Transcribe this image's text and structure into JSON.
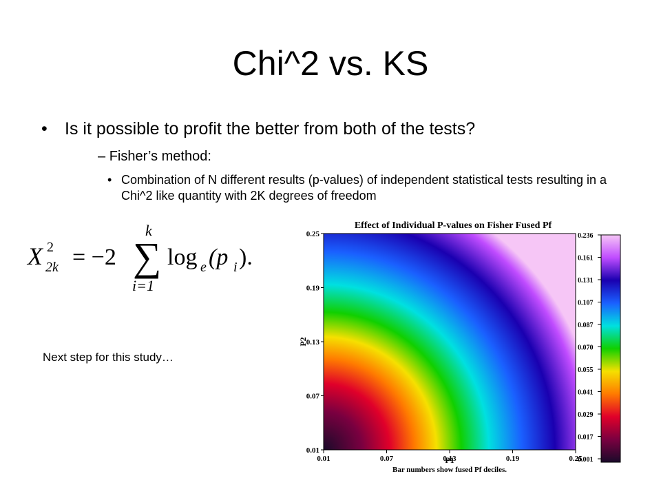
{
  "slide": {
    "title": "Chi^2 vs. KS",
    "bullet1": "Is it possible to profit the better from both of the tests?",
    "bullet2": "Fisher’s method:",
    "bullet3": "Combination of N different results (p-values) of independent statistical tests resulting in a Chi^2 like quantity with 2K degrees of freedom",
    "dash": "–",
    "dot": "•",
    "note": "Next step for this study…"
  },
  "formula": {
    "lhs": "X",
    "sup": "2",
    "sub": "2k",
    "equals": "= −2",
    "sum_symbol": "∑",
    "upper": "k",
    "lower": "i=1",
    "log": "log",
    "log_base": "e",
    "arg": "(p",
    "arg_sub": "i",
    "close": ")."
  },
  "chart_data": {
    "type": "heatmap",
    "title": "Effect of Individual P-values on Fisher Fused Pf",
    "xlabel": "P1",
    "ylabel": "P2",
    "x_ticks": [
      "0.01",
      "0.07",
      "0.13",
      "0.19",
      "0.25"
    ],
    "y_ticks": [
      "0.25",
      "0.19",
      "0.13",
      "0.07",
      "0.01"
    ],
    "xlim": [
      0.01,
      0.25
    ],
    "ylim": [
      0.01,
      0.25
    ],
    "colorbar_ticks": [
      "0.236",
      "0.161",
      "0.131",
      "0.107",
      "0.087",
      "0.070",
      "0.055",
      "0.041",
      "0.029",
      "0.017",
      "0.001"
    ],
    "caption": "Bar numbers show fused Pf deciles.",
    "colors": [
      "#1a0a2a",
      "#7a0040",
      "#e0002a",
      "#ff7a00",
      "#f5e000",
      "#10d000",
      "#00e0e0",
      "#1a60ff",
      "#1a00b0",
      "#c04cff",
      "#f6c6f6"
    ]
  }
}
